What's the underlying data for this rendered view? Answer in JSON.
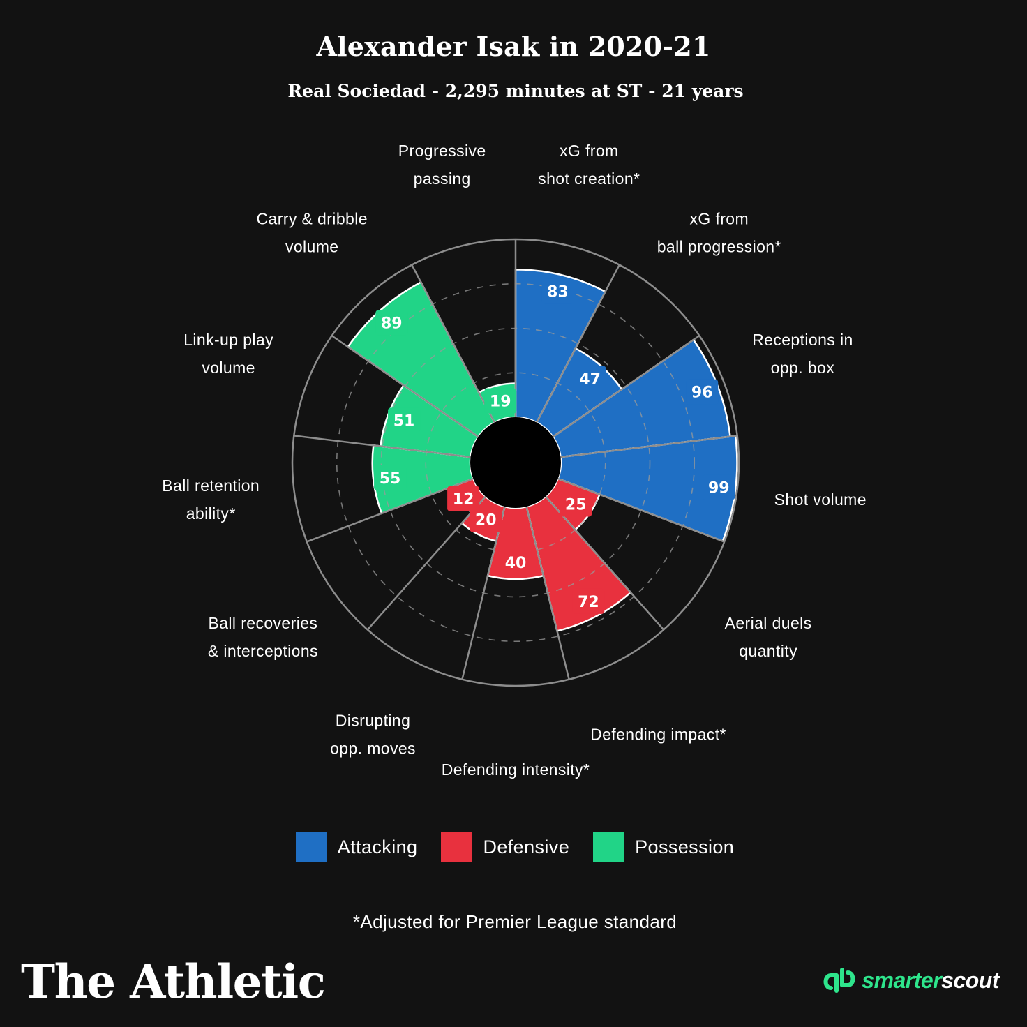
{
  "header": {
    "title": "Alexander Isak in 2020-21",
    "subtitle": "Real Sociedad - 2,295 minutes at ST - 21 years"
  },
  "chart_data": {
    "type": "polar-bar",
    "title": "Alexander Isak in 2020-21",
    "subtitle": "Real Sociedad - 2,295 minutes at ST - 21 years",
    "scale_max": 100,
    "grid": true,
    "categories": [
      {
        "label": [
          "xG from",
          "shot creation*"
        ],
        "value": 83,
        "group": "Attacking"
      },
      {
        "label": [
          "xG from",
          "ball progression*"
        ],
        "value": 47,
        "group": "Attacking"
      },
      {
        "label": [
          "Receptions in",
          "opp. box"
        ],
        "value": 96,
        "group": "Attacking"
      },
      {
        "label": [
          "Shot volume"
        ],
        "value": 99,
        "group": "Attacking"
      },
      {
        "label": [
          "Aerial duels",
          "quantity"
        ],
        "value": 25,
        "group": "Defensive"
      },
      {
        "label": [
          "Defending impact*"
        ],
        "value": 72,
        "group": "Defensive"
      },
      {
        "label": [
          "Defending intensity*"
        ],
        "value": 40,
        "group": "Defensive"
      },
      {
        "label": [
          "Disrupting",
          "opp. moves"
        ],
        "value": 20,
        "group": "Defensive"
      },
      {
        "label": [
          "Ball recoveries",
          "& interceptions"
        ],
        "value": 12,
        "group": "Defensive"
      },
      {
        "label": [
          "Ball retention",
          "ability*"
        ],
        "value": 55,
        "group": "Possession"
      },
      {
        "label": [
          "Link-up play",
          "volume"
        ],
        "value": 51,
        "group": "Possession"
      },
      {
        "label": [
          "Carry & dribble",
          "volume"
        ],
        "value": 89,
        "group": "Possession"
      },
      {
        "label": [
          "Progressive",
          "passing"
        ],
        "value": 19,
        "group": "Possession"
      }
    ],
    "groups": [
      {
        "name": "Attacking",
        "color": "#1f6fc4"
      },
      {
        "name": "Defensive",
        "color": "#e8313e"
      },
      {
        "name": "Possession",
        "color": "#21d487"
      }
    ],
    "legend_position": "bottom"
  },
  "legend": [
    {
      "label": "Attacking",
      "color": "#1f6fc4"
    },
    {
      "label": "Defensive",
      "color": "#e8313e"
    },
    {
      "label": "Possession",
      "color": "#21d487"
    }
  ],
  "footnote": "*Adjusted for Premier League standard",
  "brand": "The Athletic",
  "partner": {
    "name_part1": "smarter",
    "name_part2": "scout",
    "icon": "smarterscout-logo-icon"
  }
}
